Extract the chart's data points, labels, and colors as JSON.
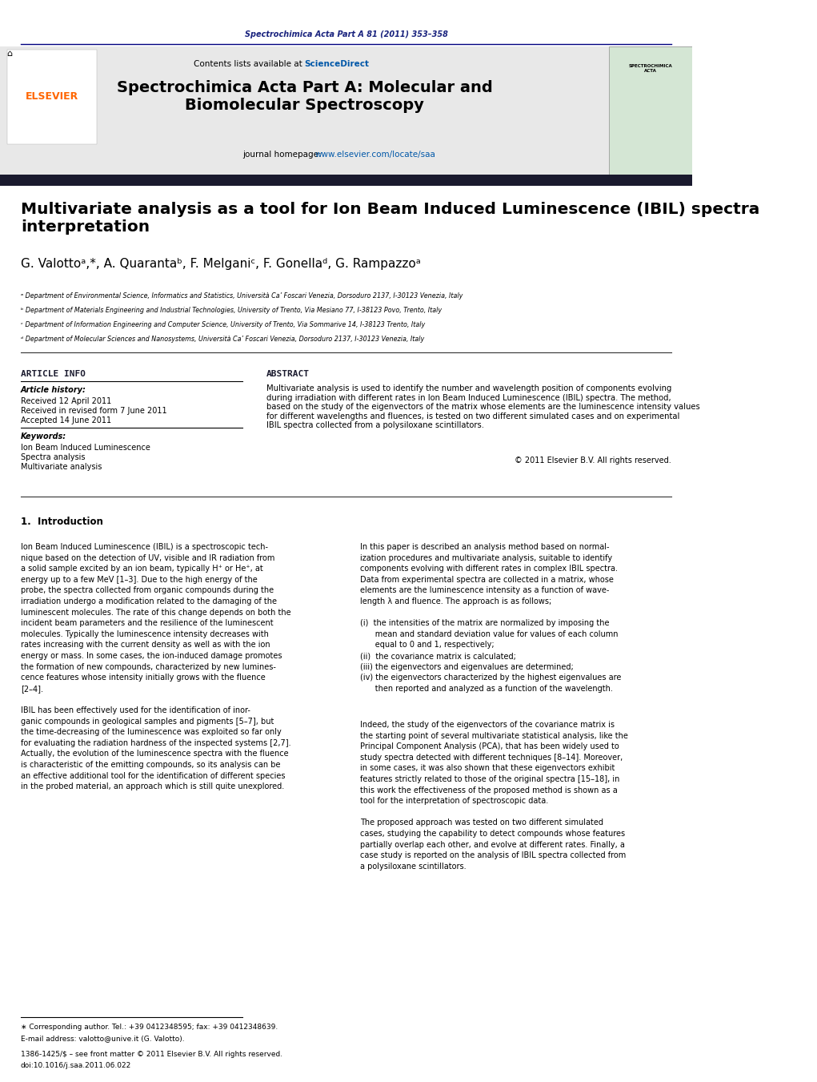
{
  "page_width": 10.21,
  "page_height": 13.51,
  "bg_color": "#ffffff",
  "top_citation": "Spectrochimica Acta Part A 81 (2011) 353–358",
  "top_citation_color": "#1a237e",
  "journal_title": "Spectrochimica Acta Part A: Molecular and\nBiomolecular Spectroscopy",
  "journal_homepage_text": "journal homepage: ",
  "journal_homepage_url": "www.elsevier.com/locate/saa",
  "contents_text": "Contents lists available at ",
  "sciencedirect_text": "ScienceDirect",
  "sciencedirect_color": "#0057a8",
  "elsevier_color": "#ff6600",
  "header_bg": "#e8e8e8",
  "dark_bar_color": "#1a1a2e",
  "article_title": "Multivariate analysis as a tool for Ion Beam Induced Luminescence (IBIL) spectra\ninterpretation",
  "authors": "G. Valottoᵃ,*, A. Quarantaᵇ, F. Melganiᶜ, F. Gonellaᵈ, G. Rampazzoᵃ",
  "affil_a": "ᵃ Department of Environmental Science, Informatics and Statistics, Università Ca’ Foscari Venezia, Dorsoduro 2137, I-30123 Venezia, Italy",
  "affil_b": "ᵇ Department of Materials Engineering and Industrial Technologies, University of Trento, Via Mesiano 77, I-38123 Povo, Trento, Italy",
  "affil_c": "ᶜ Department of Information Engineering and Computer Science, University of Trento, Via Sommarive 14, I-38123 Trento, Italy",
  "affil_d": "ᵈ Department of Molecular Sciences and Nanosystems, Università Ca’ Foscari Venezia, Dorsoduro 2137, I-30123 Venezia, Italy",
  "article_info_title": "ARTICLE INFO",
  "abstract_title": "ABSTRACT",
  "article_history_label": "Article history:",
  "received_1": "Received 12 April 2011",
  "received_2": "Received in revised form 7 June 2011",
  "accepted": "Accepted 14 June 2011",
  "keywords_label": "Keywords:",
  "keyword_1": "Ion Beam Induced Luminescence",
  "keyword_2": "Spectra analysis",
  "keyword_3": "Multivariate analysis",
  "abstract_text": "Multivariate analysis is used to identify the number and wavelength position of components evolving\nduring irradiation with different rates in Ion Beam Induced Luminescence (IBIL) spectra. The method,\nbased on the study of the eigenvectors of the matrix whose elements are the luminescence intensity values\nfor different wavelengths and fluences, is tested on two different simulated cases and on experimental\nIBIL spectra collected from a polysiloxane scintillators.",
  "copyright": "© 2011 Elsevier B.V. All rights reserved.",
  "section1_title": "1.  Introduction",
  "section1_left": "Ion Beam Induced Luminescence (IBIL) is a spectroscopic tech-\nnique based on the detection of UV, visible and IR radiation from\na solid sample excited by an ion beam, typically H⁺ or He⁺, at\nenergy up to a few MeV [1–3]. Due to the high energy of the\nprobe, the spectra collected from organic compounds during the\nirradiation undergo a modification related to the damaging of the\nluminescent molecules. The rate of this change depends on both the\nincident beam parameters and the resilience of the luminescent\nmolecules. Typically the luminescence intensity decreases with\nrates increasing with the current density as well as with the ion\nenergy or mass. In some cases, the ion-induced damage promotes\nthe formation of new compounds, characterized by new lumines-\ncence features whose intensity initially grows with the fluence\n[2–4].\n\nIBIL has been effectively used for the identification of inor-\nganic compounds in geological samples and pigments [5–7], but\nthe time-decreasing of the luminescence was exploited so far only\nfor evaluating the radiation hardness of the inspected systems [2,7].\nActually, the evolution of the luminescence spectra with the fluence\nis characteristic of the emitting compounds, so its analysis can be\nan effective additional tool for the identification of different species\nin the probed material, an approach which is still quite unexplored.",
  "section1_right": "In this paper is described an analysis method based on normal-\nization procedures and multivariate analysis, suitable to identify\ncomponents evolving with different rates in complex IBIL spectra.\nData from experimental spectra are collected in a matrix, whose\nelements are the luminescence intensity as a function of wave-\nlength λ and fluence. The approach is as follows;\n\n(i)  the intensities of the matrix are normalized by imposing the\n      mean and standard deviation value for values of each column\n      equal to 0 and 1, respectively;\n(ii)  the covariance matrix is calculated;\n(iii) the eigenvectors and eigenvalues are determined;\n(iv) the eigenvectors characterized by the highest eigenvalues are\n      then reported and analyzed as a function of the wavelength.",
  "section1_right2": "Indeed, the study of the eigenvectors of the covariance matrix is\nthe starting point of several multivariate statistical analysis, like the\nPrincipal Component Analysis (PCA), that has been widely used to\nstudy spectra detected with different techniques [8–14]. Moreover,\nin some cases, it was also shown that these eigenvectors exhibit\nfeatures strictly related to those of the original spectra [15–18], in\nthis work the effectiveness of the proposed method is shown as a\ntool for the interpretation of spectroscopic data.\n\nThe proposed approach was tested on two different simulated\ncases, studying the capability to detect compounds whose features\npartially overlap each other, and evolve at different rates. Finally, a\ncase study is reported on the analysis of IBIL spectra collected from\na polysiloxane scintillators.",
  "footnote_star": "∗ Corresponding author. Tel.: +39 0412348595; fax: +39 0412348639.",
  "footnote_email": "E-mail address: valotto@unive.it (G. Valotto).",
  "footnote_issn": "1386-1425/$ – see front matter © 2011 Elsevier B.V. All rights reserved.",
  "footnote_doi": "doi:10.1016/j.saa.2011.06.022"
}
